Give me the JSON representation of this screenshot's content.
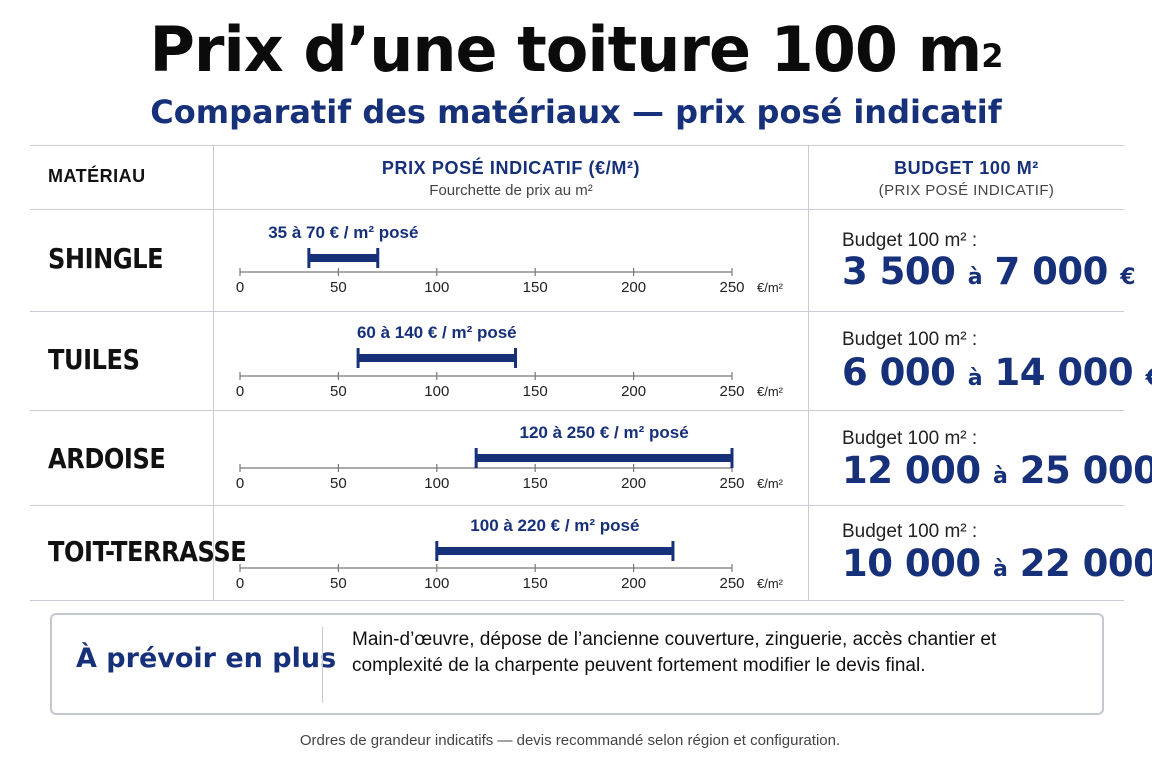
{
  "title": "Prix d’une toiture 100 m",
  "title_sup": "2",
  "subtitle": "Comparatif des matériaux — prix posé indicatif",
  "headers": {
    "material": "MATÉRIAU",
    "price": "PRIX POSÉ INDICATIF (€/M²)",
    "price_sub": "Fourchette de prix au m²",
    "budget": "BUDGET 100 M²",
    "budget_sub": "(PRIX POSÉ INDICATIF)"
  },
  "colors": {
    "accent": "#17307a",
    "text": "#111111",
    "grid": "#c9ccd3"
  },
  "chart_data": {
    "type": "bar",
    "orientation": "horizontal-range",
    "xlim": [
      0,
      250
    ],
    "xticks": [
      0,
      50,
      100,
      150,
      200,
      250
    ],
    "xunit": "€/m²",
    "rows": [
      {
        "name": "SHINGLE",
        "min": 35,
        "max": 70,
        "label": "35 à 70 € / m² posé",
        "budget_label": "Budget 100 m² :",
        "budget_from": "3 500",
        "budget_to": "7 000",
        "budget_word": "à",
        "budget_unit": "€"
      },
      {
        "name": "TUILES",
        "min": 60,
        "max": 140,
        "label": "60 à 140 € / m² posé",
        "budget_label": "Budget 100 m² :",
        "budget_from": "6 000",
        "budget_to": "14 000",
        "budget_word": "à",
        "budget_unit": "€"
      },
      {
        "name": "ARDOISE",
        "min": 120,
        "max": 250,
        "label": "120 à 250 € / m² posé",
        "budget_label": "Budget 100 m² :",
        "budget_from": "12 000",
        "budget_to": "25 000",
        "budget_word": "à",
        "budget_unit": "€"
      },
      {
        "name": "TOIT-TERRASSE",
        "min": 100,
        "max": 220,
        "label": "100 à 220 € / m² posé",
        "budget_label": "Budget 100 m² :",
        "budget_from": "10 000",
        "budget_to": "22 000",
        "budget_word": "à",
        "budget_unit": "€"
      }
    ]
  },
  "note": {
    "title": "À prévoir en plus",
    "text": "Main-d’œuvre, dépose de l’ancienne couverture, zinguerie, accès chantier et complexité de la charpente peuvent fortement modifier le devis final."
  },
  "footer": "Ordres de grandeur indicatifs — devis recommandé selon région et configuration."
}
